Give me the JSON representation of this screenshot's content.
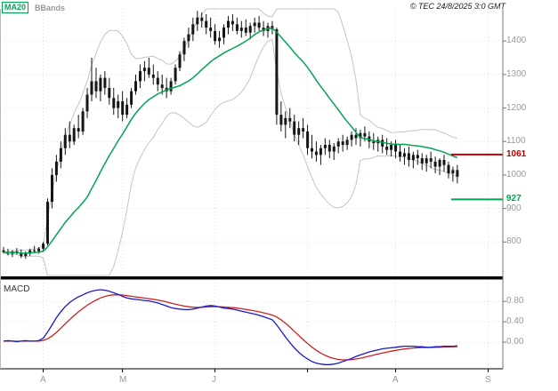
{
  "header": {
    "legend": [
      {
        "label": "MA20",
        "color": "#00a650"
      },
      {
        "label": "BBands",
        "color": "#999999"
      }
    ],
    "copyright": "© TEC 24/8/2025 3:0 GMT"
  },
  "panels": {
    "macd_label": "MACD"
  },
  "chart_data": {
    "type": "candlestick",
    "title": "",
    "xlabel": "",
    "ylabel": "",
    "overlays": [
      "MA20",
      "Bollinger Bands"
    ],
    "legend_position": "top-left",
    "grid": true,
    "price_range": [
      700,
      1496
    ],
    "y_ticks": [
      1400,
      1300,
      1200,
      1100,
      1000,
      900,
      800
    ],
    "x_labels": [
      {
        "label": "A",
        "index": 9
      },
      {
        "label": "M",
        "index": 27
      },
      {
        "label": "J",
        "index": 48
      },
      {
        "label": "A",
        "index": 89
      },
      {
        "label": "S",
        "index": 110
      }
    ],
    "grid_indices": [
      9,
      27,
      48,
      69,
      89,
      110
    ],
    "price_lines": [
      {
        "value": 1061,
        "label": "1061",
        "color": "#c00000"
      },
      {
        "value": 927,
        "label": "927",
        "color": "#00a650"
      }
    ],
    "colors": {
      "candle": "#161616",
      "ma": "#00a650",
      "bands": "#c4c4c4",
      "macd_line": "#1a1acc",
      "macd_signal": "#cc2222",
      "grid": "#e2e2e2",
      "vgrid": "#d8d8d8",
      "axis": "#777777"
    },
    "ohlc": [
      [
        775,
        785,
        765,
        770
      ],
      [
        770,
        780,
        760,
        765
      ],
      [
        765,
        775,
        755,
        772
      ],
      [
        772,
        782,
        762,
        768
      ],
      [
        768,
        778,
        752,
        758
      ],
      [
        758,
        772,
        750,
        765
      ],
      [
        765,
        780,
        758,
        775
      ],
      [
        775,
        788,
        768,
        772
      ],
      [
        772,
        785,
        765,
        780
      ],
      [
        780,
        800,
        775,
        795
      ],
      [
        795,
        930,
        790,
        920
      ],
      [
        920,
        1020,
        900,
        1000
      ],
      [
        1000,
        1060,
        980,
        1040
      ],
      [
        1040,
        1100,
        1020,
        1080
      ],
      [
        1080,
        1140,
        1060,
        1120
      ],
      [
        1120,
        1160,
        1080,
        1100
      ],
      [
        1100,
        1150,
        1090,
        1140
      ],
      [
        1140,
        1180,
        1110,
        1130
      ],
      [
        1130,
        1200,
        1120,
        1190
      ],
      [
        1190,
        1260,
        1170,
        1240
      ],
      [
        1240,
        1350,
        1220,
        1280
      ],
      [
        1280,
        1320,
        1230,
        1250
      ],
      [
        1250,
        1300,
        1220,
        1290
      ],
      [
        1290,
        1310,
        1240,
        1260
      ],
      [
        1260,
        1290,
        1210,
        1230
      ],
      [
        1230,
        1260,
        1180,
        1200
      ],
      [
        1200,
        1240,
        1170,
        1220
      ],
      [
        1220,
        1250,
        1160,
        1180
      ],
      [
        1180,
        1230,
        1170,
        1210
      ],
      [
        1210,
        1260,
        1200,
        1250
      ],
      [
        1250,
        1300,
        1240,
        1280
      ],
      [
        1280,
        1330,
        1260,
        1310
      ],
      [
        1310,
        1340,
        1280,
        1320
      ],
      [
        1320,
        1350,
        1290,
        1300
      ],
      [
        1300,
        1330,
        1270,
        1290
      ],
      [
        1290,
        1310,
        1250,
        1270
      ],
      [
        1270,
        1300,
        1240,
        1260
      ],
      [
        1260,
        1290,
        1230,
        1250
      ],
      [
        1250,
        1290,
        1240,
        1280
      ],
      [
        1280,
        1330,
        1270,
        1320
      ],
      [
        1320,
        1370,
        1310,
        1360
      ],
      [
        1360,
        1410,
        1340,
        1400
      ],
      [
        1400,
        1440,
        1380,
        1420
      ],
      [
        1420,
        1470,
        1400,
        1450
      ],
      [
        1450,
        1490,
        1430,
        1470
      ],
      [
        1470,
        1485,
        1440,
        1460
      ],
      [
        1460,
        1480,
        1420,
        1440
      ],
      [
        1440,
        1470,
        1410,
        1430
      ],
      [
        1430,
        1450,
        1390,
        1400
      ],
      [
        1400,
        1430,
        1380,
        1410
      ],
      [
        1410,
        1450,
        1390,
        1440
      ],
      [
        1440,
        1475,
        1420,
        1460
      ],
      [
        1460,
        1480,
        1430,
        1450
      ],
      [
        1450,
        1470,
        1420,
        1430
      ],
      [
        1430,
        1460,
        1410,
        1440
      ],
      [
        1440,
        1465,
        1415,
        1425
      ],
      [
        1425,
        1455,
        1405,
        1445
      ],
      [
        1445,
        1470,
        1425,
        1455
      ],
      [
        1455,
        1475,
        1430,
        1440
      ],
      [
        1440,
        1460,
        1415,
        1430
      ],
      [
        1430,
        1455,
        1410,
        1445
      ],
      [
        1445,
        1460,
        1420,
        1435
      ],
      [
        1435,
        1440,
        1150,
        1180
      ],
      [
        1180,
        1220,
        1130,
        1150
      ],
      [
        1150,
        1190,
        1110,
        1170
      ],
      [
        1170,
        1200,
        1140,
        1160
      ],
      [
        1160,
        1180,
        1100,
        1120
      ],
      [
        1120,
        1160,
        1090,
        1140
      ],
      [
        1140,
        1170,
        1110,
        1130
      ],
      [
        1130,
        1150,
        1060,
        1080
      ],
      [
        1080,
        1120,
        1050,
        1070
      ],
      [
        1070,
        1100,
        1040,
        1060
      ],
      [
        1060,
        1090,
        1030,
        1080
      ],
      [
        1080,
        1110,
        1060,
        1090
      ],
      [
        1090,
        1105,
        1050,
        1070
      ],
      [
        1070,
        1095,
        1045,
        1085
      ],
      [
        1085,
        1110,
        1065,
        1100
      ],
      [
        1100,
        1120,
        1070,
        1090
      ],
      [
        1090,
        1115,
        1075,
        1105
      ],
      [
        1105,
        1130,
        1085,
        1120
      ],
      [
        1120,
        1140,
        1090,
        1110
      ],
      [
        1110,
        1135,
        1085,
        1125
      ],
      [
        1125,
        1145,
        1100,
        1115
      ],
      [
        1115,
        1130,
        1080,
        1100
      ],
      [
        1100,
        1125,
        1075,
        1095
      ],
      [
        1095,
        1115,
        1070,
        1105
      ],
      [
        1105,
        1120,
        1065,
        1085
      ],
      [
        1085,
        1110,
        1060,
        1075
      ],
      [
        1075,
        1100,
        1055,
        1090
      ],
      [
        1090,
        1105,
        1050,
        1070
      ],
      [
        1070,
        1090,
        1040,
        1055
      ],
      [
        1055,
        1080,
        1030,
        1065
      ],
      [
        1065,
        1085,
        1025,
        1045
      ],
      [
        1045,
        1070,
        1020,
        1060
      ],
      [
        1060,
        1075,
        1030,
        1050
      ],
      [
        1050,
        1065,
        1015,
        1035
      ],
      [
        1035,
        1060,
        1010,
        1050
      ],
      [
        1050,
        1070,
        1020,
        1040
      ],
      [
        1040,
        1055,
        1005,
        1025
      ],
      [
        1025,
        1050,
        1000,
        1045
      ],
      [
        1045,
        1060,
        1010,
        1030
      ],
      [
        1030,
        1040,
        990,
        1005
      ],
      [
        1005,
        1025,
        980,
        1015
      ],
      [
        1015,
        1030,
        975,
        995
      ]
    ],
    "macd": {
      "range": [
        -0.47,
        1.17
      ],
      "ticks": [
        0.8,
        0.4,
        0.0
      ],
      "tick_labels": [
        "0.80",
        "0.40",
        "0.00"
      ],
      "signal": "ema9",
      "line": [
        0.02,
        0.03,
        0.02,
        0.01,
        0.02,
        0.03,
        0.02,
        0.02,
        0.03,
        0.08,
        0.2,
        0.34,
        0.48,
        0.6,
        0.7,
        0.78,
        0.84,
        0.89,
        0.93,
        0.97,
        1.0,
        1.02,
        1.03,
        1.02,
        1.0,
        0.97,
        0.94,
        0.9,
        0.87,
        0.85,
        0.84,
        0.83,
        0.82,
        0.81,
        0.79,
        0.77,
        0.74,
        0.71,
        0.68,
        0.66,
        0.65,
        0.64,
        0.64,
        0.65,
        0.67,
        0.69,
        0.71,
        0.72,
        0.71,
        0.69,
        0.67,
        0.66,
        0.65,
        0.63,
        0.61,
        0.59,
        0.57,
        0.55,
        0.53,
        0.5,
        0.47,
        0.44,
        0.34,
        0.22,
        0.1,
        -0.01,
        -0.11,
        -0.2,
        -0.27,
        -0.33,
        -0.38,
        -0.41,
        -0.43,
        -0.44,
        -0.44,
        -0.43,
        -0.41,
        -0.38,
        -0.35,
        -0.32,
        -0.28,
        -0.25,
        -0.22,
        -0.19,
        -0.17,
        -0.15,
        -0.13,
        -0.12,
        -0.11,
        -0.1,
        -0.09,
        -0.08,
        -0.08,
        -0.08,
        -0.09,
        -0.09,
        -0.1,
        -0.1,
        -0.09,
        -0.09,
        -0.08,
        -0.08,
        -0.08,
        -0.07
      ]
    }
  }
}
